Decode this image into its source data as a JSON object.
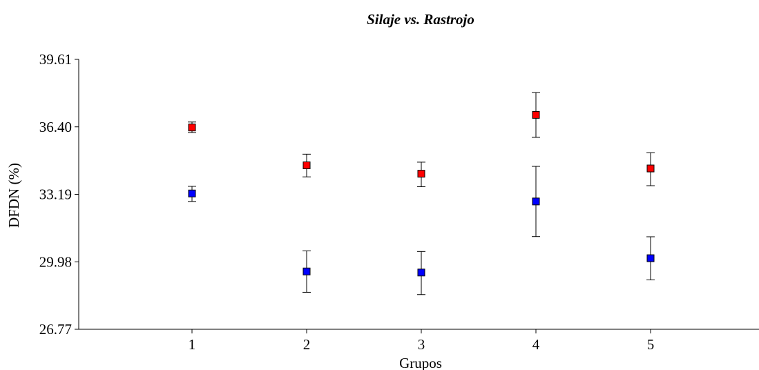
{
  "chart_data": {
    "type": "scatter",
    "title": "Silaje vs. Rastrojo",
    "xlabel": "Grupos",
    "ylabel": "DFDN (%)",
    "x_ticks": [
      "1",
      "2",
      "3",
      "4",
      "5"
    ],
    "y_ticks": [
      "39.61",
      "36.40",
      "33.19",
      "29.98",
      "26.77"
    ],
    "xlim": [
      0,
      6
    ],
    "ylim": [
      26.77,
      39.61
    ],
    "series": [
      {
        "color": "#ff0000",
        "points": [
          {
            "x": 1,
            "y": 36.37,
            "err_low": 36.13,
            "err_high": 36.63
          },
          {
            "x": 2,
            "y": 34.57,
            "err_low": 34.02,
            "err_high": 35.1
          },
          {
            "x": 3,
            "y": 34.17,
            "err_low": 33.55,
            "err_high": 34.72
          },
          {
            "x": 4,
            "y": 36.97,
            "err_low": 35.9,
            "err_high": 38.03
          },
          {
            "x": 5,
            "y": 34.42,
            "err_low": 33.6,
            "err_high": 35.17
          }
        ]
      },
      {
        "color": "#0000ff",
        "points": [
          {
            "x": 1,
            "y": 33.23,
            "err_low": 32.85,
            "err_high": 33.57
          },
          {
            "x": 2,
            "y": 29.52,
            "err_low": 28.53,
            "err_high": 30.5
          },
          {
            "x": 3,
            "y": 29.47,
            "err_low": 28.42,
            "err_high": 30.47
          },
          {
            "x": 4,
            "y": 32.85,
            "err_low": 31.18,
            "err_high": 34.52
          },
          {
            "x": 5,
            "y": 30.15,
            "err_low": 29.12,
            "err_high": 31.17
          }
        ]
      }
    ]
  }
}
